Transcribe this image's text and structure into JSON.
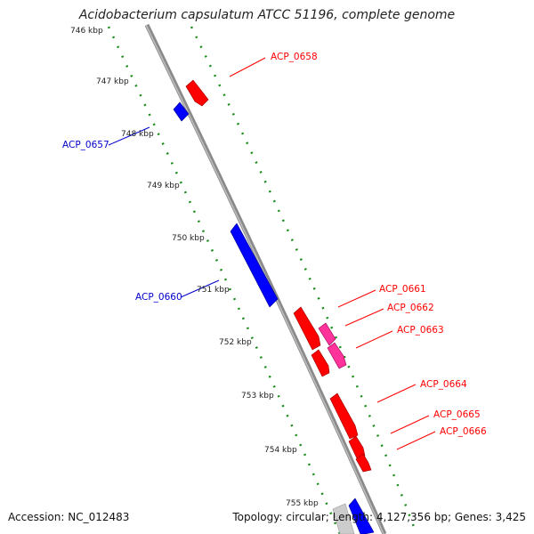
{
  "title": "Acidobacterium capsulatum ATCC 51196, complete genome",
  "footer": {
    "accession": "Accession: NC_012483",
    "stats": "Topology: circular; Length: 4,127,356 bp; Genes: 3,425"
  },
  "scale": {
    "ticks": [
      "746 kbp",
      "747 kbp",
      "748 kbp",
      "749 kbp",
      "750 kbp",
      "751 kbp",
      "752 kbp",
      "753 kbp",
      "754 kbp",
      "755 kbp"
    ]
  },
  "genes": {
    "forward_labels": [
      "ACP_0658",
      "ACP_0661",
      "ACP_0662",
      "ACP_0663",
      "ACP_0664",
      "ACP_0665",
      "ACP_0666"
    ],
    "reverse_labels": [
      "ACP_0657",
      "ACP_0660"
    ]
  },
  "colors": {
    "forward": "#ff0000",
    "forward_alt": "#ff3399",
    "reverse": "#0000ff",
    "backbone": "#888888",
    "dots": "#1a8c1a"
  }
}
